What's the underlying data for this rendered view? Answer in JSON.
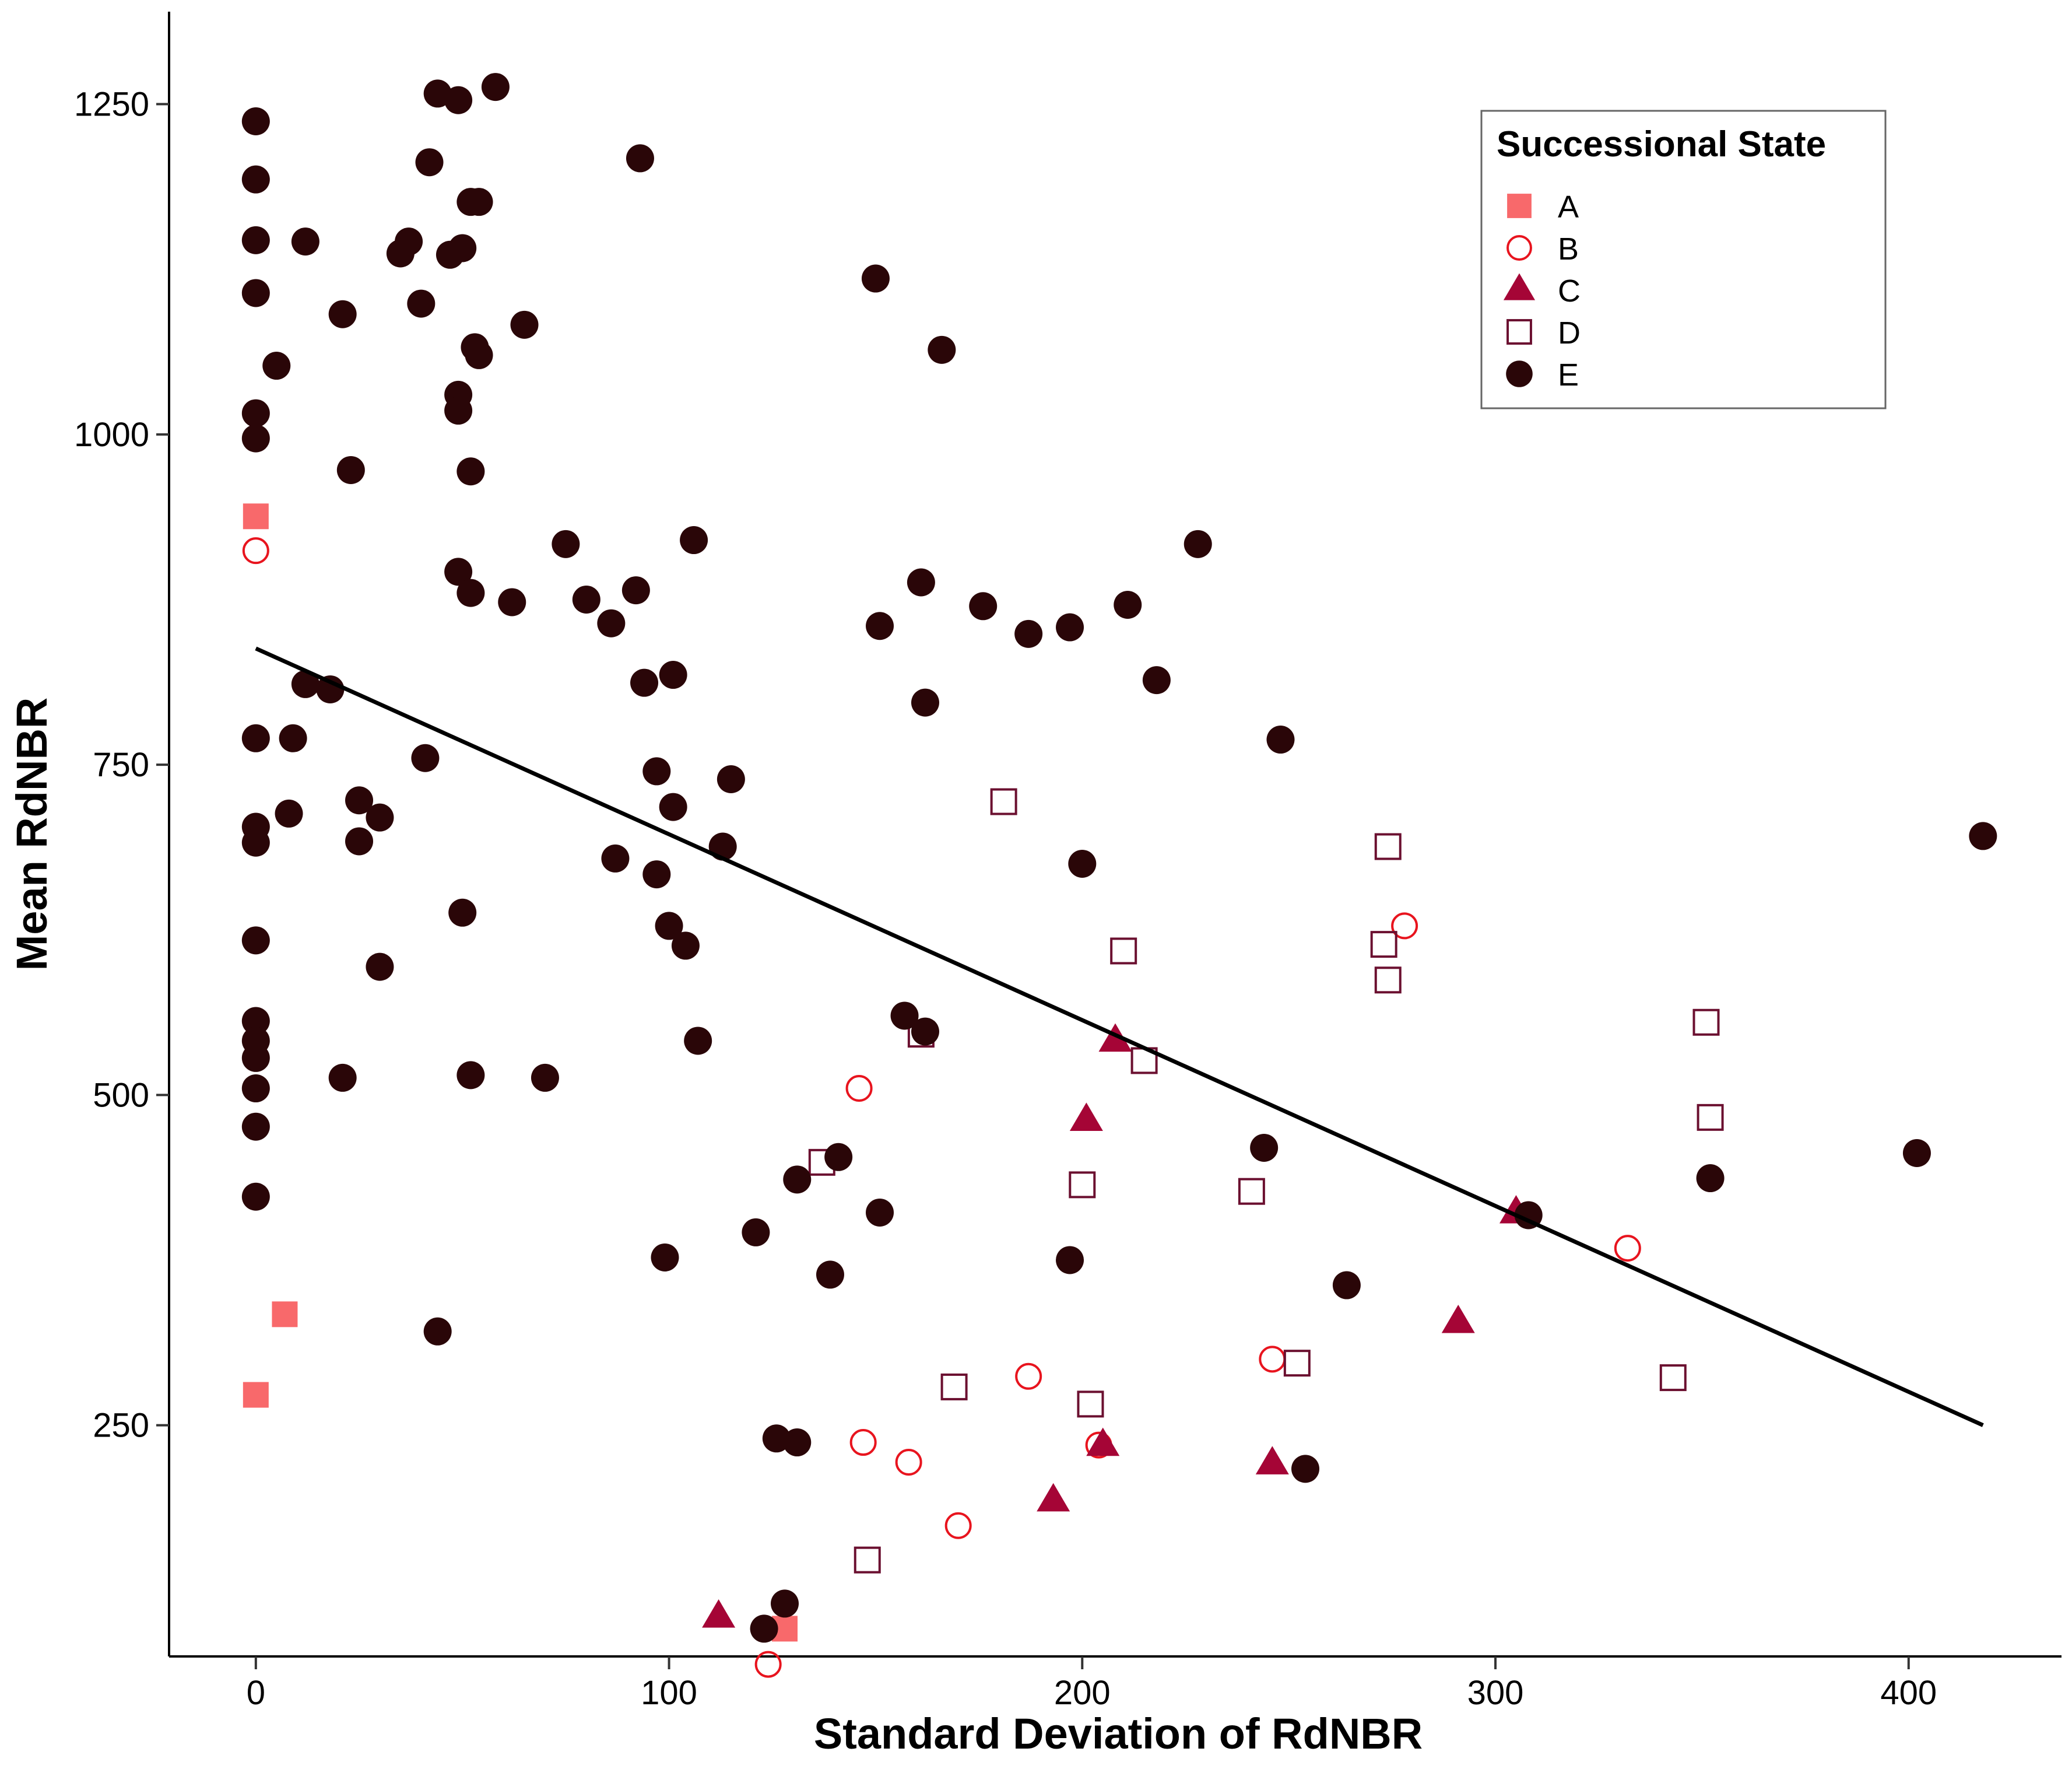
{
  "chart_data": {
    "type": "scatter",
    "xlabel": "Standard Deviation of RdNBR",
    "ylabel": "Mean RdNBR",
    "xlim": [
      -21,
      437
    ],
    "ylim": [
      75,
      1320
    ],
    "x_ticks": [
      0,
      100,
      200,
      300,
      400
    ],
    "y_ticks": [
      250,
      500,
      750,
      1000,
      1250
    ],
    "grid": false,
    "legend": {
      "title": "Successional State",
      "position": "top-right",
      "entries": [
        {
          "label": "A",
          "shape": "square-filled",
          "color": "#F8696B"
        },
        {
          "label": "B",
          "shape": "circle-open",
          "color": "#E8141E"
        },
        {
          "label": "C",
          "shape": "triangle-filled",
          "color": "#A50536"
        },
        {
          "label": "D",
          "shape": "square-open",
          "color": "#6B1030"
        },
        {
          "label": "E",
          "shape": "circle-filled",
          "color": "#2A0608"
        }
      ]
    },
    "trend_line": {
      "x": [
        0,
        418
      ],
      "y": [
        838,
        250
      ],
      "color": "#000000"
    },
    "series": [
      {
        "name": "A",
        "points": [
          [
            0,
            938
          ],
          [
            7,
            334
          ],
          [
            0,
            273
          ],
          [
            128,
            96
          ]
        ]
      },
      {
        "name": "B",
        "points": [
          [
            0,
            912
          ],
          [
            146,
            505
          ],
          [
            147,
            237
          ],
          [
            158,
            222
          ],
          [
            170,
            174
          ],
          [
            187,
            287
          ],
          [
            204,
            235
          ],
          [
            246,
            300
          ],
          [
            278,
            628
          ],
          [
            332,
            384
          ],
          [
            124,
            69
          ]
        ]
      },
      {
        "name": "C",
        "points": [
          [
            208,
            541
          ],
          [
            201,
            481
          ],
          [
            205,
            235
          ],
          [
            193,
            193
          ],
          [
            246,
            221
          ],
          [
            291,
            328
          ],
          [
            305,
            411
          ],
          [
            112,
            105
          ]
        ]
      },
      {
        "name": "D",
        "points": [
          [
            181,
            722
          ],
          [
            210,
            609
          ],
          [
            274,
            688
          ],
          [
            273,
            614
          ],
          [
            274,
            587
          ],
          [
            215,
            526
          ],
          [
            161,
            546
          ],
          [
            137,
            449
          ],
          [
            200,
            432
          ],
          [
            241,
            427
          ],
          [
            252,
            297
          ],
          [
            169,
            279
          ],
          [
            202,
            266
          ],
          [
            148,
            148
          ],
          [
            343,
            286
          ],
          [
            351,
            555
          ],
          [
            352,
            483
          ]
        ]
      },
      {
        "name": "E",
        "points": [
          [
            0,
            1237
          ],
          [
            0,
            1193
          ],
          [
            0,
            1147
          ],
          [
            0,
            1107
          ],
          [
            0,
            1016
          ],
          [
            0,
            997
          ],
          [
            0,
            770
          ],
          [
            0,
            703
          ],
          [
            0,
            691
          ],
          [
            0,
            617
          ],
          [
            0,
            556
          ],
          [
            0,
            541
          ],
          [
            0,
            528
          ],
          [
            0,
            505
          ],
          [
            0,
            476
          ],
          [
            0,
            423
          ],
          [
            5,
            1052
          ],
          [
            12,
            1146
          ],
          [
            8,
            713
          ],
          [
            9,
            770
          ],
          [
            12,
            811
          ],
          [
            18,
            807
          ],
          [
            21,
            1091
          ],
          [
            23,
            973
          ],
          [
            25,
            723
          ],
          [
            25,
            692
          ],
          [
            21,
            513
          ],
          [
            30,
            710
          ],
          [
            30,
            597
          ],
          [
            35,
            1137
          ],
          [
            37,
            1146
          ],
          [
            40,
            1099
          ],
          [
            42,
            1206
          ],
          [
            44,
            1258
          ],
          [
            47,
            1136
          ],
          [
            49,
            1253
          ],
          [
            50,
            1141
          ],
          [
            52,
            1176
          ],
          [
            54,
            1176
          ],
          [
            53,
            1066
          ],
          [
            54,
            1060
          ],
          [
            49,
            1030
          ],
          [
            49,
            1018
          ],
          [
            65,
            1083
          ],
          [
            58,
            1263
          ],
          [
            52,
            972
          ],
          [
            49,
            896
          ],
          [
            52,
            880
          ],
          [
            62,
            873
          ],
          [
            41,
            755
          ],
          [
            50,
            638
          ],
          [
            52,
            515
          ],
          [
            70,
            513
          ],
          [
            44,
            321
          ],
          [
            75,
            917
          ],
          [
            80,
            875
          ],
          [
            86,
            857
          ],
          [
            92,
            882
          ],
          [
            94,
            812
          ],
          [
            93,
            1209
          ],
          [
            97,
            745
          ],
          [
            101,
            718
          ],
          [
            101,
            818
          ],
          [
            106,
            920
          ],
          [
            115,
            739
          ],
          [
            113,
            688
          ],
          [
            87,
            679
          ],
          [
            97,
            667
          ],
          [
            100,
            628
          ],
          [
            104,
            613
          ],
          [
            107,
            541
          ],
          [
            157,
            560
          ],
          [
            162,
            548
          ],
          [
            150,
            1118
          ],
          [
            151,
            855
          ],
          [
            161,
            888
          ],
          [
            162,
            797
          ],
          [
            166,
            1064
          ],
          [
            176,
            870
          ],
          [
            187,
            849
          ],
          [
            197,
            854
          ],
          [
            200,
            675
          ],
          [
            211,
            871
          ],
          [
            218,
            814
          ],
          [
            228,
            917
          ],
          [
            248,
            769
          ],
          [
            99,
            377
          ],
          [
            121,
            396
          ],
          [
            126,
            240
          ],
          [
            131,
            436
          ],
          [
            131,
            237
          ],
          [
            141,
            453
          ],
          [
            139,
            364
          ],
          [
            151,
            411
          ],
          [
            197,
            375
          ],
          [
            244,
            460
          ],
          [
            254,
            217
          ],
          [
            264,
            356
          ],
          [
            308,
            409
          ],
          [
            352,
            437
          ],
          [
            402,
            456
          ],
          [
            418,
            696
          ],
          [
            123,
            96
          ],
          [
            128,
            115
          ]
        ]
      }
    ]
  }
}
